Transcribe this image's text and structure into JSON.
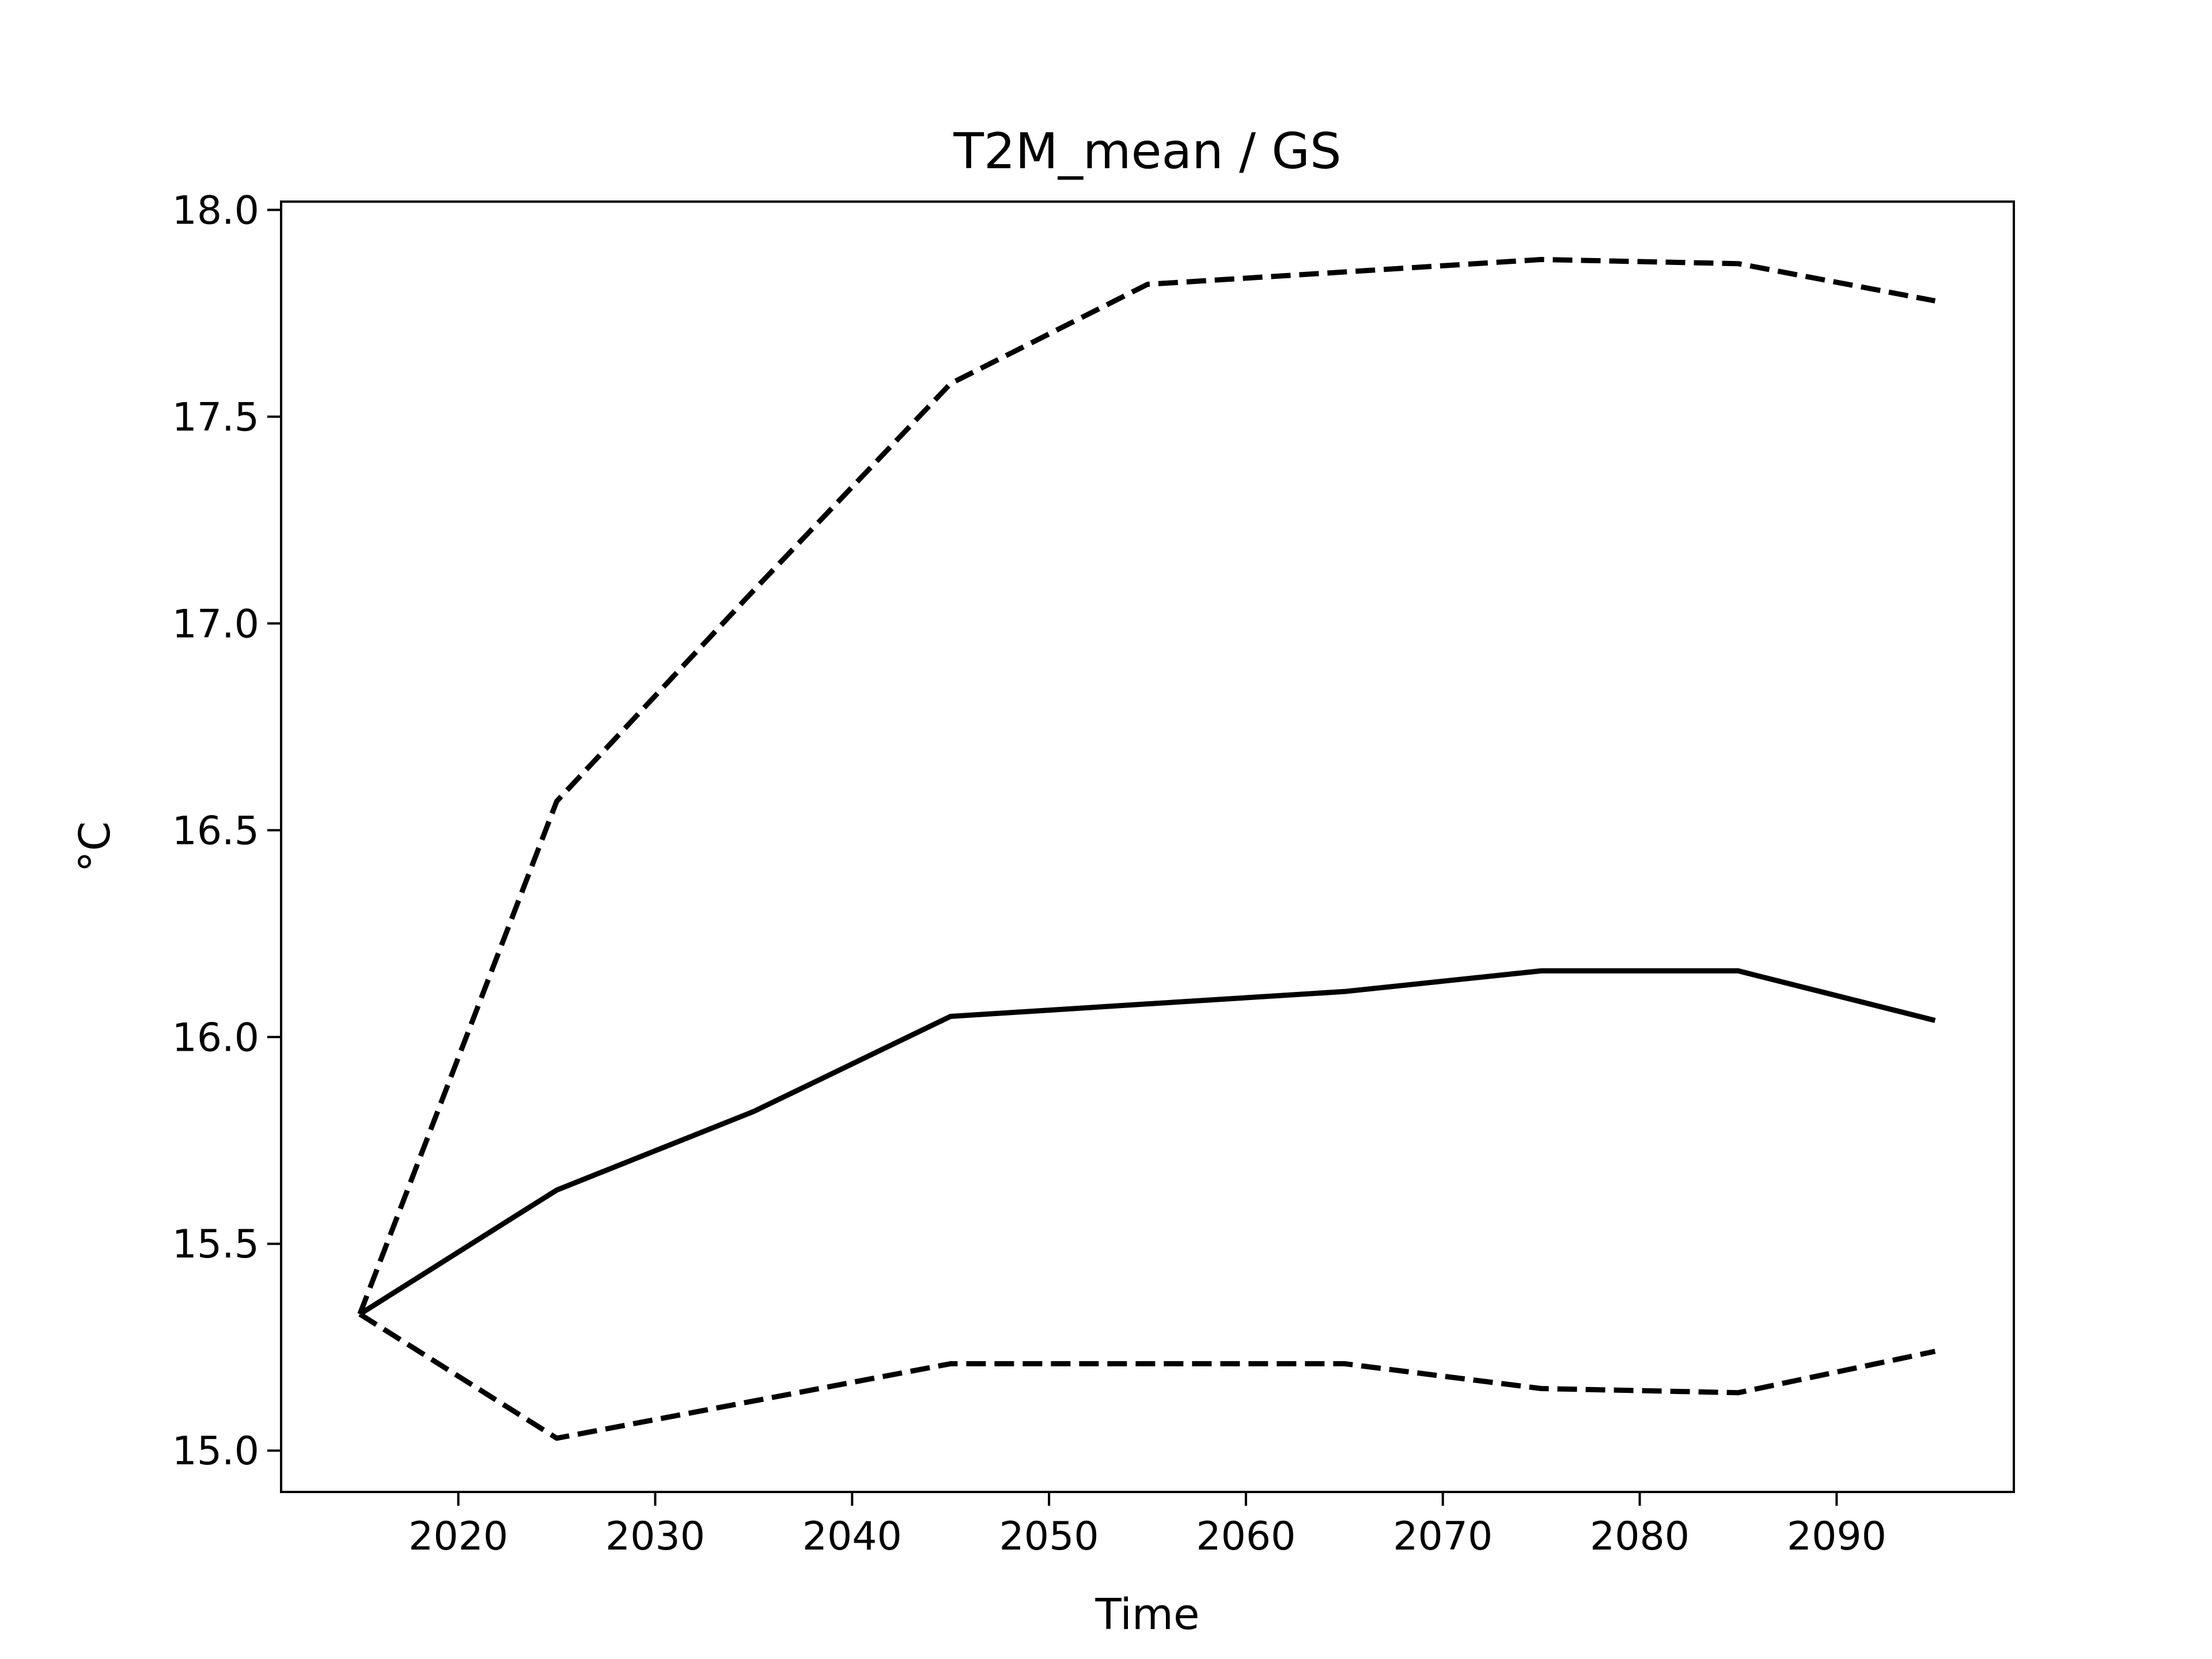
{
  "chart_data": {
    "type": "line",
    "title": "T2M_mean / GS",
    "xlabel": "Time",
    "ylabel": "°C",
    "xlim": [
      2011,
      2099
    ],
    "ylim": [
      14.9,
      18.02
    ],
    "xticks": [
      2020,
      2030,
      2040,
      2050,
      2060,
      2070,
      2080,
      2090
    ],
    "yticks": [
      15.0,
      15.5,
      16.0,
      16.5,
      17.0,
      17.5,
      18.0
    ],
    "ytick_labels": [
      "15.0",
      "15.5",
      "16.0",
      "16.5",
      "17.0",
      "17.5",
      "18.0"
    ],
    "grid": false,
    "legend": false,
    "x": [
      2015,
      2025,
      2035,
      2045,
      2055,
      2065,
      2075,
      2085,
      2095
    ],
    "series": [
      {
        "style": "solid",
        "color": "#000000",
        "values": [
          15.33,
          15.63,
          15.82,
          16.05,
          16.08,
          16.11,
          16.16,
          16.16,
          16.04
        ]
      },
      {
        "style": "dashed",
        "color": "#000000",
        "values": [
          15.33,
          16.57,
          17.08,
          17.58,
          17.82,
          17.85,
          17.88,
          17.87,
          17.78
        ]
      },
      {
        "style": "dashed",
        "color": "#000000",
        "values": [
          15.33,
          15.03,
          15.12,
          15.21,
          15.21,
          15.21,
          15.15,
          15.14,
          15.24
        ]
      }
    ]
  }
}
